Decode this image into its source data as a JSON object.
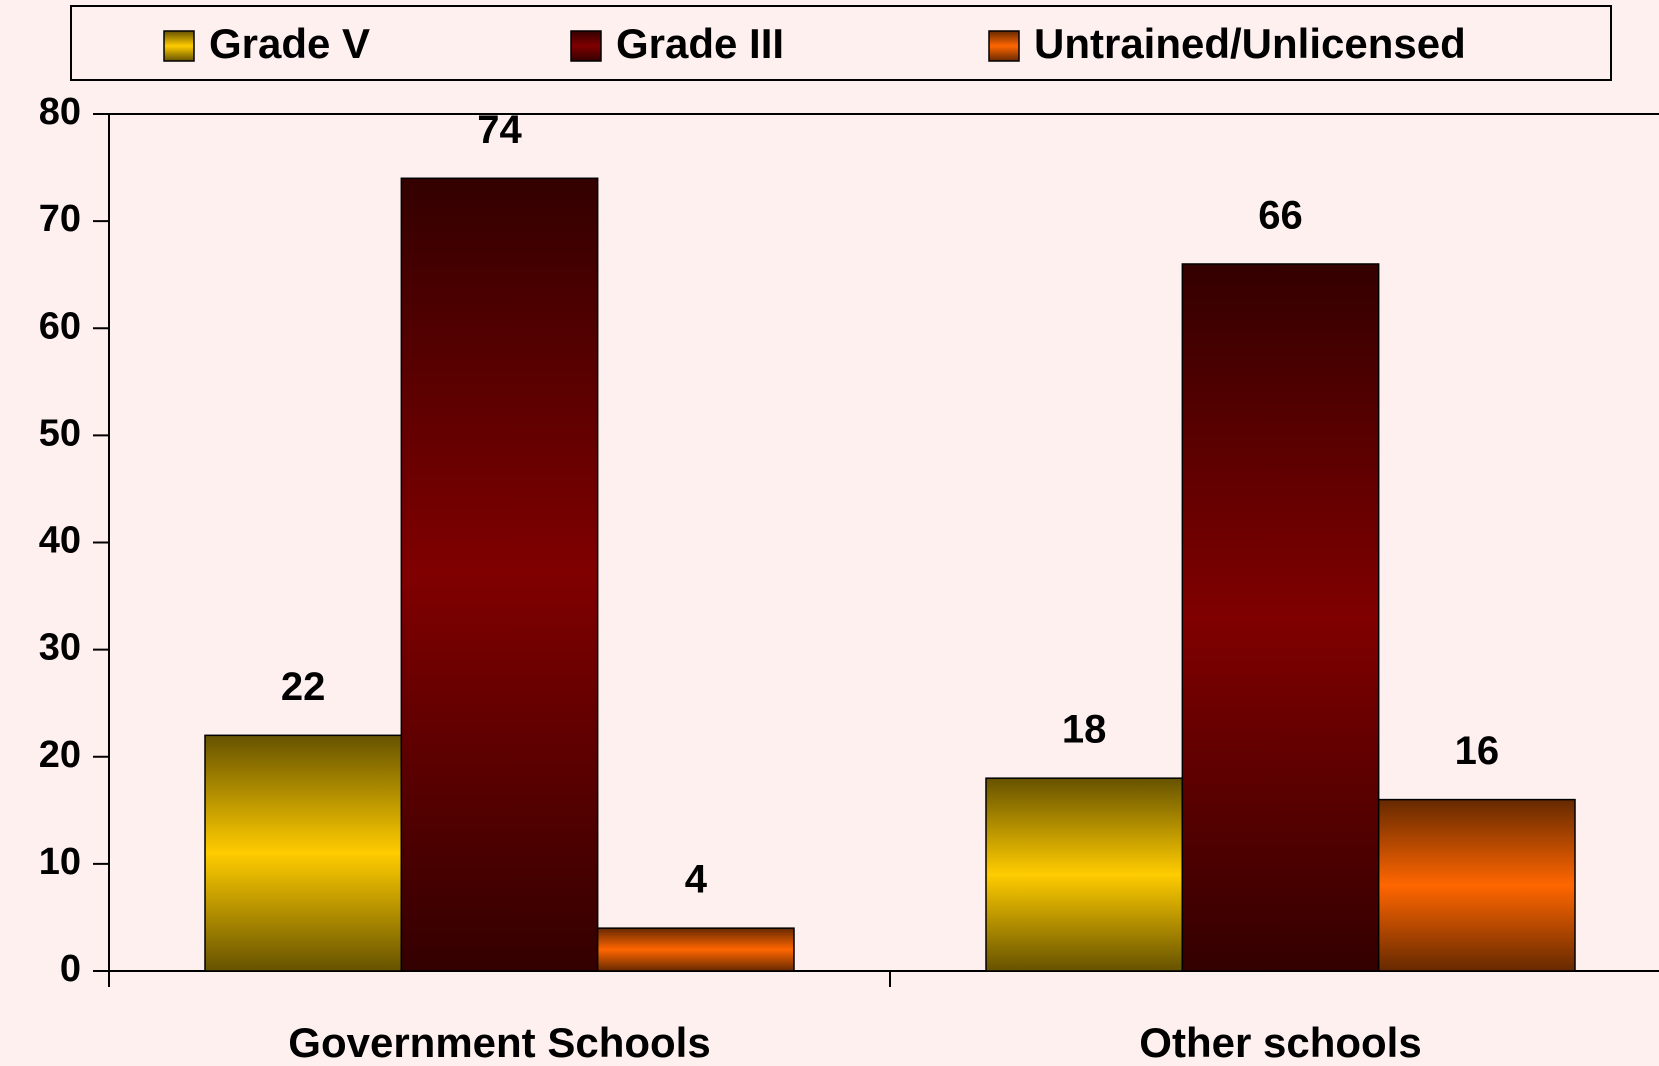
{
  "chart_data": {
    "type": "bar",
    "categories": [
      "Government Schools",
      "Other schools"
    ],
    "series": [
      {
        "name": "Grade V",
        "color": "#ffcc00",
        "values": [
          22,
          18
        ]
      },
      {
        "name": "Grade III",
        "color": "#800000",
        "values": [
          74,
          66
        ]
      },
      {
        "name": "Untrained/Unlicensed",
        "color": "#ff6600",
        "values": [
          4,
          16
        ]
      }
    ],
    "ylim": [
      0,
      80
    ],
    "yticks": [
      0,
      10,
      20,
      30,
      40,
      50,
      60,
      70,
      80
    ],
    "legend": "top",
    "grid": false
  }
}
